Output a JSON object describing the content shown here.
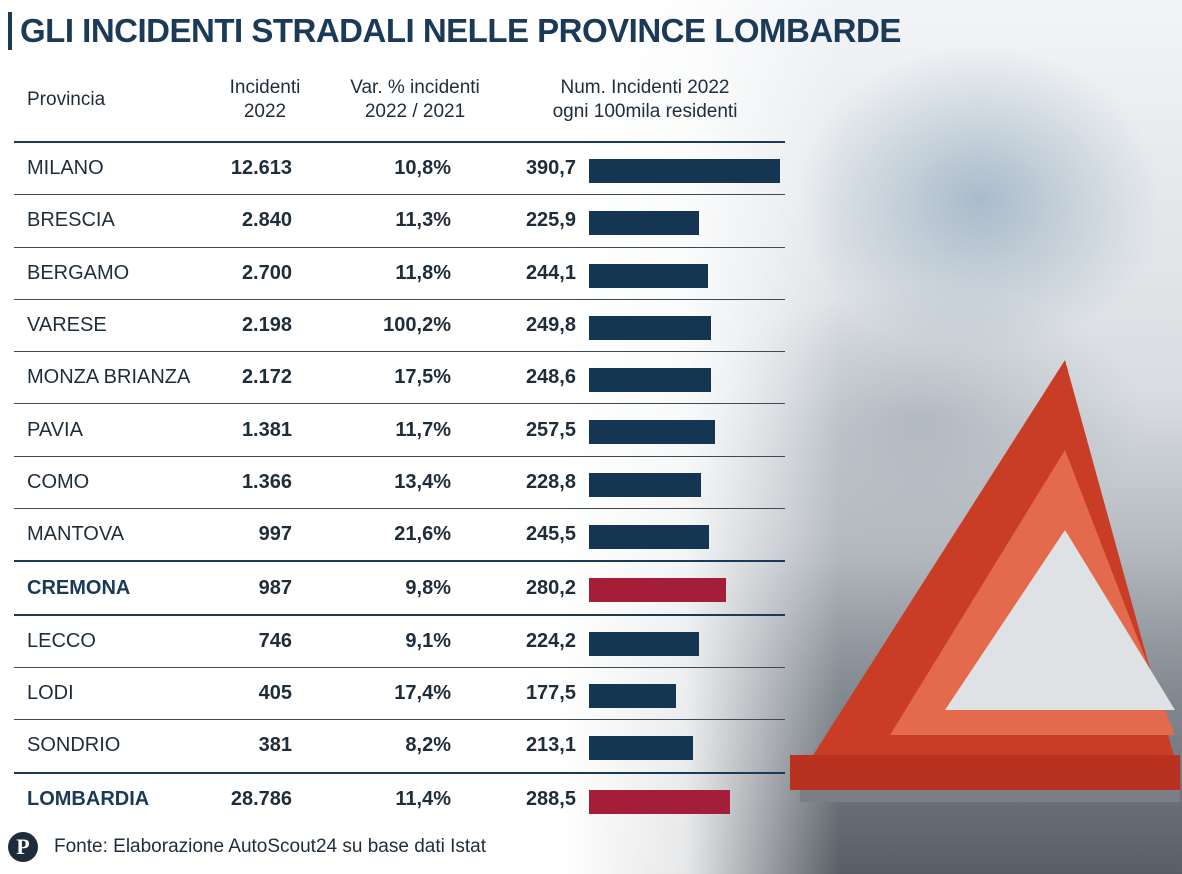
{
  "title": "GLI INCIDENTI STRADALI NELLE PROVINCE LOMBARDE",
  "headers": {
    "provincia": "Provincia",
    "incidenti_l1": "Incidenti",
    "incidenti_l2": "2022",
    "var_l1": "Var. % incidenti",
    "var_l2": "2022 / 2021",
    "num_l1": "Num. Incidenti 2022",
    "num_l2": "ogni 100mila residenti"
  },
  "rows": [
    {
      "name": "MILANO",
      "incidenti": "12.613",
      "var": "10,8%",
      "rate_label": "390,7"
    },
    {
      "name": "BRESCIA",
      "incidenti": "2.840",
      "var": "11,3%",
      "rate_label": "225,9"
    },
    {
      "name": "BERGAMO",
      "incidenti": "2.700",
      "var": "11,8%",
      "rate_label": "244,1"
    },
    {
      "name": "VARESE",
      "incidenti": "2.198",
      "var": "100,2%",
      "rate_label": "249,8"
    },
    {
      "name": "MONZA BRIANZA",
      "incidenti": "2.172",
      "var": "17,5%",
      "rate_label": "248,6"
    },
    {
      "name": "PAVIA",
      "incidenti": "1.381",
      "var": "11,7%",
      "rate_label": "257,5"
    },
    {
      "name": "COMO",
      "incidenti": "1.366",
      "var": "13,4%",
      "rate_label": "228,8"
    },
    {
      "name": "MANTOVA",
      "incidenti": "997",
      "var": "21,6%",
      "rate_label": "245,5"
    },
    {
      "name": "CREMONA",
      "incidenti": "987",
      "var": "9,8%",
      "rate_label": "280,2"
    },
    {
      "name": "LECCO",
      "incidenti": "746",
      "var": "9,1%",
      "rate_label": "224,2"
    },
    {
      "name": "LODI",
      "incidenti": "405",
      "var": "17,4%",
      "rate_label": "177,5"
    },
    {
      "name": "SONDRIO",
      "incidenti": "381",
      "var": "8,2%",
      "rate_label": "213,1"
    },
    {
      "name": "LOMBARDIA",
      "incidenti": "28.786",
      "var": "11,4%",
      "rate_label": "288,5"
    }
  ],
  "chart_data": {
    "type": "bar",
    "orientation": "horizontal",
    "title": "Num. Incidenti 2022 ogni 100mila residenti",
    "categories": [
      "MILANO",
      "BRESCIA",
      "BERGAMO",
      "VARESE",
      "MONZA BRIANZA",
      "PAVIA",
      "COMO",
      "MANTOVA",
      "CREMONA",
      "LECCO",
      "LODI",
      "SONDRIO",
      "LOMBARDIA"
    ],
    "values": [
      390.7,
      225.9,
      244.1,
      249.8,
      248.6,
      257.5,
      228.8,
      245.5,
      280.2,
      224.2,
      177.5,
      213.1,
      288.5
    ],
    "highlighted": [
      "CREMONA",
      "LOMBARDIA"
    ],
    "xlim": [
      0,
      390.7
    ]
  },
  "colors": {
    "bar": "#143653",
    "highlight": "#a41e3a",
    "title": "#1b3a57"
  },
  "footer": {
    "logo_letter": "P",
    "source": "Fonte: Elaborazione AutoScout24 su base dati Istat"
  }
}
